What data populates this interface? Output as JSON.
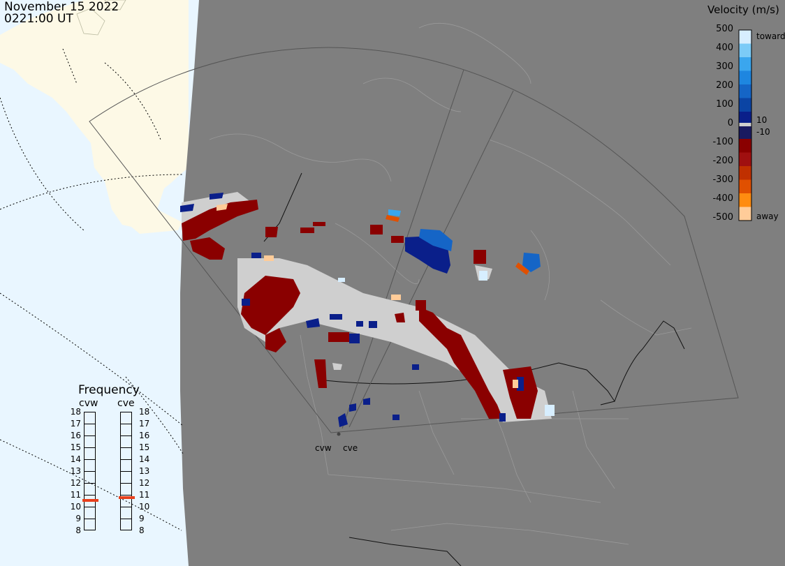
{
  "header": {
    "date": "November 15 2022",
    "time": "0221:00 UT"
  },
  "legend": {
    "title": "Velocity (m/s)",
    "ticks": [
      "500",
      "400",
      "300",
      "200",
      "100",
      "0",
      "-100",
      "-200",
      "-300",
      "-400",
      "-500"
    ],
    "inner_labels": [
      "10",
      "-10"
    ],
    "toward_label": "toward",
    "away_label": "away",
    "colors": [
      "#d7eeff",
      "#7ccbf7",
      "#3aa6ee",
      "#1e86e0",
      "#1565c6",
      "#0b44a4",
      "#0a1f8a",
      "#1a1a60",
      "#8a0000",
      "#a01010",
      "#c03000",
      "#e05000",
      "#ff8c10",
      "#ffcc99"
    ]
  },
  "radars": {
    "site_labels": [
      "cvw",
      "cve"
    ]
  },
  "frequency": {
    "title": "Frequency",
    "columns": [
      {
        "label": "cvw",
        "value_mhz": 10.6
      },
      {
        "label": "cve",
        "value_mhz": 10.8
      }
    ],
    "scale": [
      "18",
      "17",
      "16",
      "15",
      "14",
      "13",
      "12",
      "11",
      "10",
      "9",
      "8"
    ],
    "indicator_color": "#e8401c"
  },
  "map": {
    "ocean_color": "#e9f6ff",
    "land_color": "#fdf9e6",
    "night_color": "#7f7f7f",
    "scatter_color": "#cfcfcf"
  }
}
